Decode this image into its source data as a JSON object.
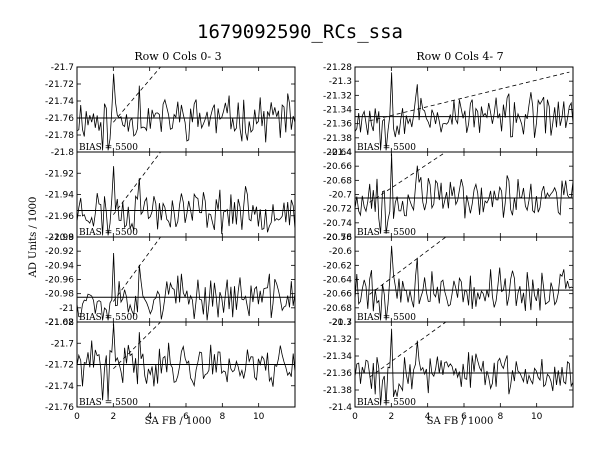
{
  "title": "1679092590_RCs_ssa",
  "ylabel": "AD Units / 1000",
  "xlabel": "SA FB / 1000",
  "bias_label": "BIAS = 5500",
  "columns": [
    {
      "title": "Row 0 Cols 0- 3",
      "xlim": [
        0,
        12
      ],
      "xticks": [
        0,
        2,
        4,
        6,
        8,
        10
      ],
      "panels": [
        {
          "ylim": [
            -21.8,
            -21.7
          ],
          "yticks": [
            -21.7,
            -21.72,
            -21.74,
            -21.76,
            -21.78,
            -21.8
          ],
          "yticklabels": [
            "-21.7",
            "-21.72",
            "-21.74",
            "-21.76",
            "-21.78",
            "-21.8"
          ],
          "baseline": -21.76,
          "seed": 11
        },
        {
          "ylim": [
            -21.98,
            -21.9
          ],
          "yticks": [
            -21.92,
            -21.94,
            -21.96,
            -21.98
          ],
          "yticklabels": [
            "-21.92",
            "-21.94",
            "-21.96",
            "-21.98"
          ],
          "baseline": -21.955,
          "seed": 23
        },
        {
          "ylim": [
            -21.02,
            -20.9
          ],
          "yticks": [
            -20.9,
            -20.92,
            -20.94,
            -20.96,
            -20.98,
            -21.0,
            -21.02
          ],
          "yticklabels": [
            "-20.9",
            "-20.92",
            "-20.94",
            "-20.96",
            "-20.98",
            "-21",
            "-21.02"
          ],
          "baseline": -20.985,
          "seed": 37
        },
        {
          "ylim": [
            -21.76,
            -21.68
          ],
          "yticks": [
            -21.68,
            -21.7,
            -21.72,
            -21.74,
            -21.76
          ],
          "yticklabels": [
            "-21.68",
            "-21.7",
            "-21.72",
            "-21.74",
            "-21.76"
          ],
          "baseline": -21.72,
          "seed": 41
        }
      ]
    },
    {
      "title": "Row 0 Cols 4- 7",
      "xlim": [
        0,
        12
      ],
      "xticks": [
        0,
        2,
        4,
        6,
        8,
        10
      ],
      "panels": [
        {
          "ylim": [
            -21.4,
            -21.28
          ],
          "yticks": [
            -21.28,
            -21.3,
            -21.32,
            -21.34,
            -21.36,
            -21.38,
            -21.4
          ],
          "yticklabels": [
            "-21.28",
            "-21.3",
            "-21.32",
            "-21.34",
            "-21.36",
            "-21.38",
            "-21.4"
          ],
          "baseline": -21.35,
          "seed": 53
        },
        {
          "ylim": [
            -20.76,
            -20.64
          ],
          "yticks": [
            -20.64,
            -20.66,
            -20.68,
            -20.7,
            -20.72,
            -20.74,
            -20.76
          ],
          "yticklabels": [
            "-20.64",
            "-20.66",
            "-20.68",
            "-20.7",
            "-20.72",
            "-20.74",
            "-20.76"
          ],
          "baseline": -20.705,
          "seed": 67
        },
        {
          "ylim": [
            -20.7,
            -20.58
          ],
          "yticks": [
            -20.58,
            -20.6,
            -20.62,
            -20.64,
            -20.66,
            -20.68,
            -20.7
          ],
          "yticklabels": [
            "-20.58",
            "-20.6",
            "-20.62",
            "-20.64",
            "-20.66",
            "-20.68",
            "-20.7"
          ],
          "baseline": -20.655,
          "seed": 79
        },
        {
          "ylim": [
            -21.4,
            -21.3
          ],
          "yticks": [
            -21.3,
            -21.32,
            -21.34,
            -21.36,
            -21.38,
            -21.4
          ],
          "yticklabels": [
            "-21.3",
            "-21.32",
            "-21.34",
            "-21.36",
            "-21.38",
            "-21.4"
          ],
          "baseline": -21.36,
          "seed": 83
        }
      ]
    }
  ],
  "chart_data": {
    "type": "line",
    "title": "1679092590_RCs_ssa",
    "xlabel": "SA FB / 1000",
    "ylabel": "AD Units / 1000",
    "xlim": [
      0,
      12
    ],
    "series_style": [
      "solid noisy trace",
      "horizontal solid baseline",
      "dashed rising line"
    ],
    "grid": false,
    "annotation": "BIAS = 5500"
  }
}
